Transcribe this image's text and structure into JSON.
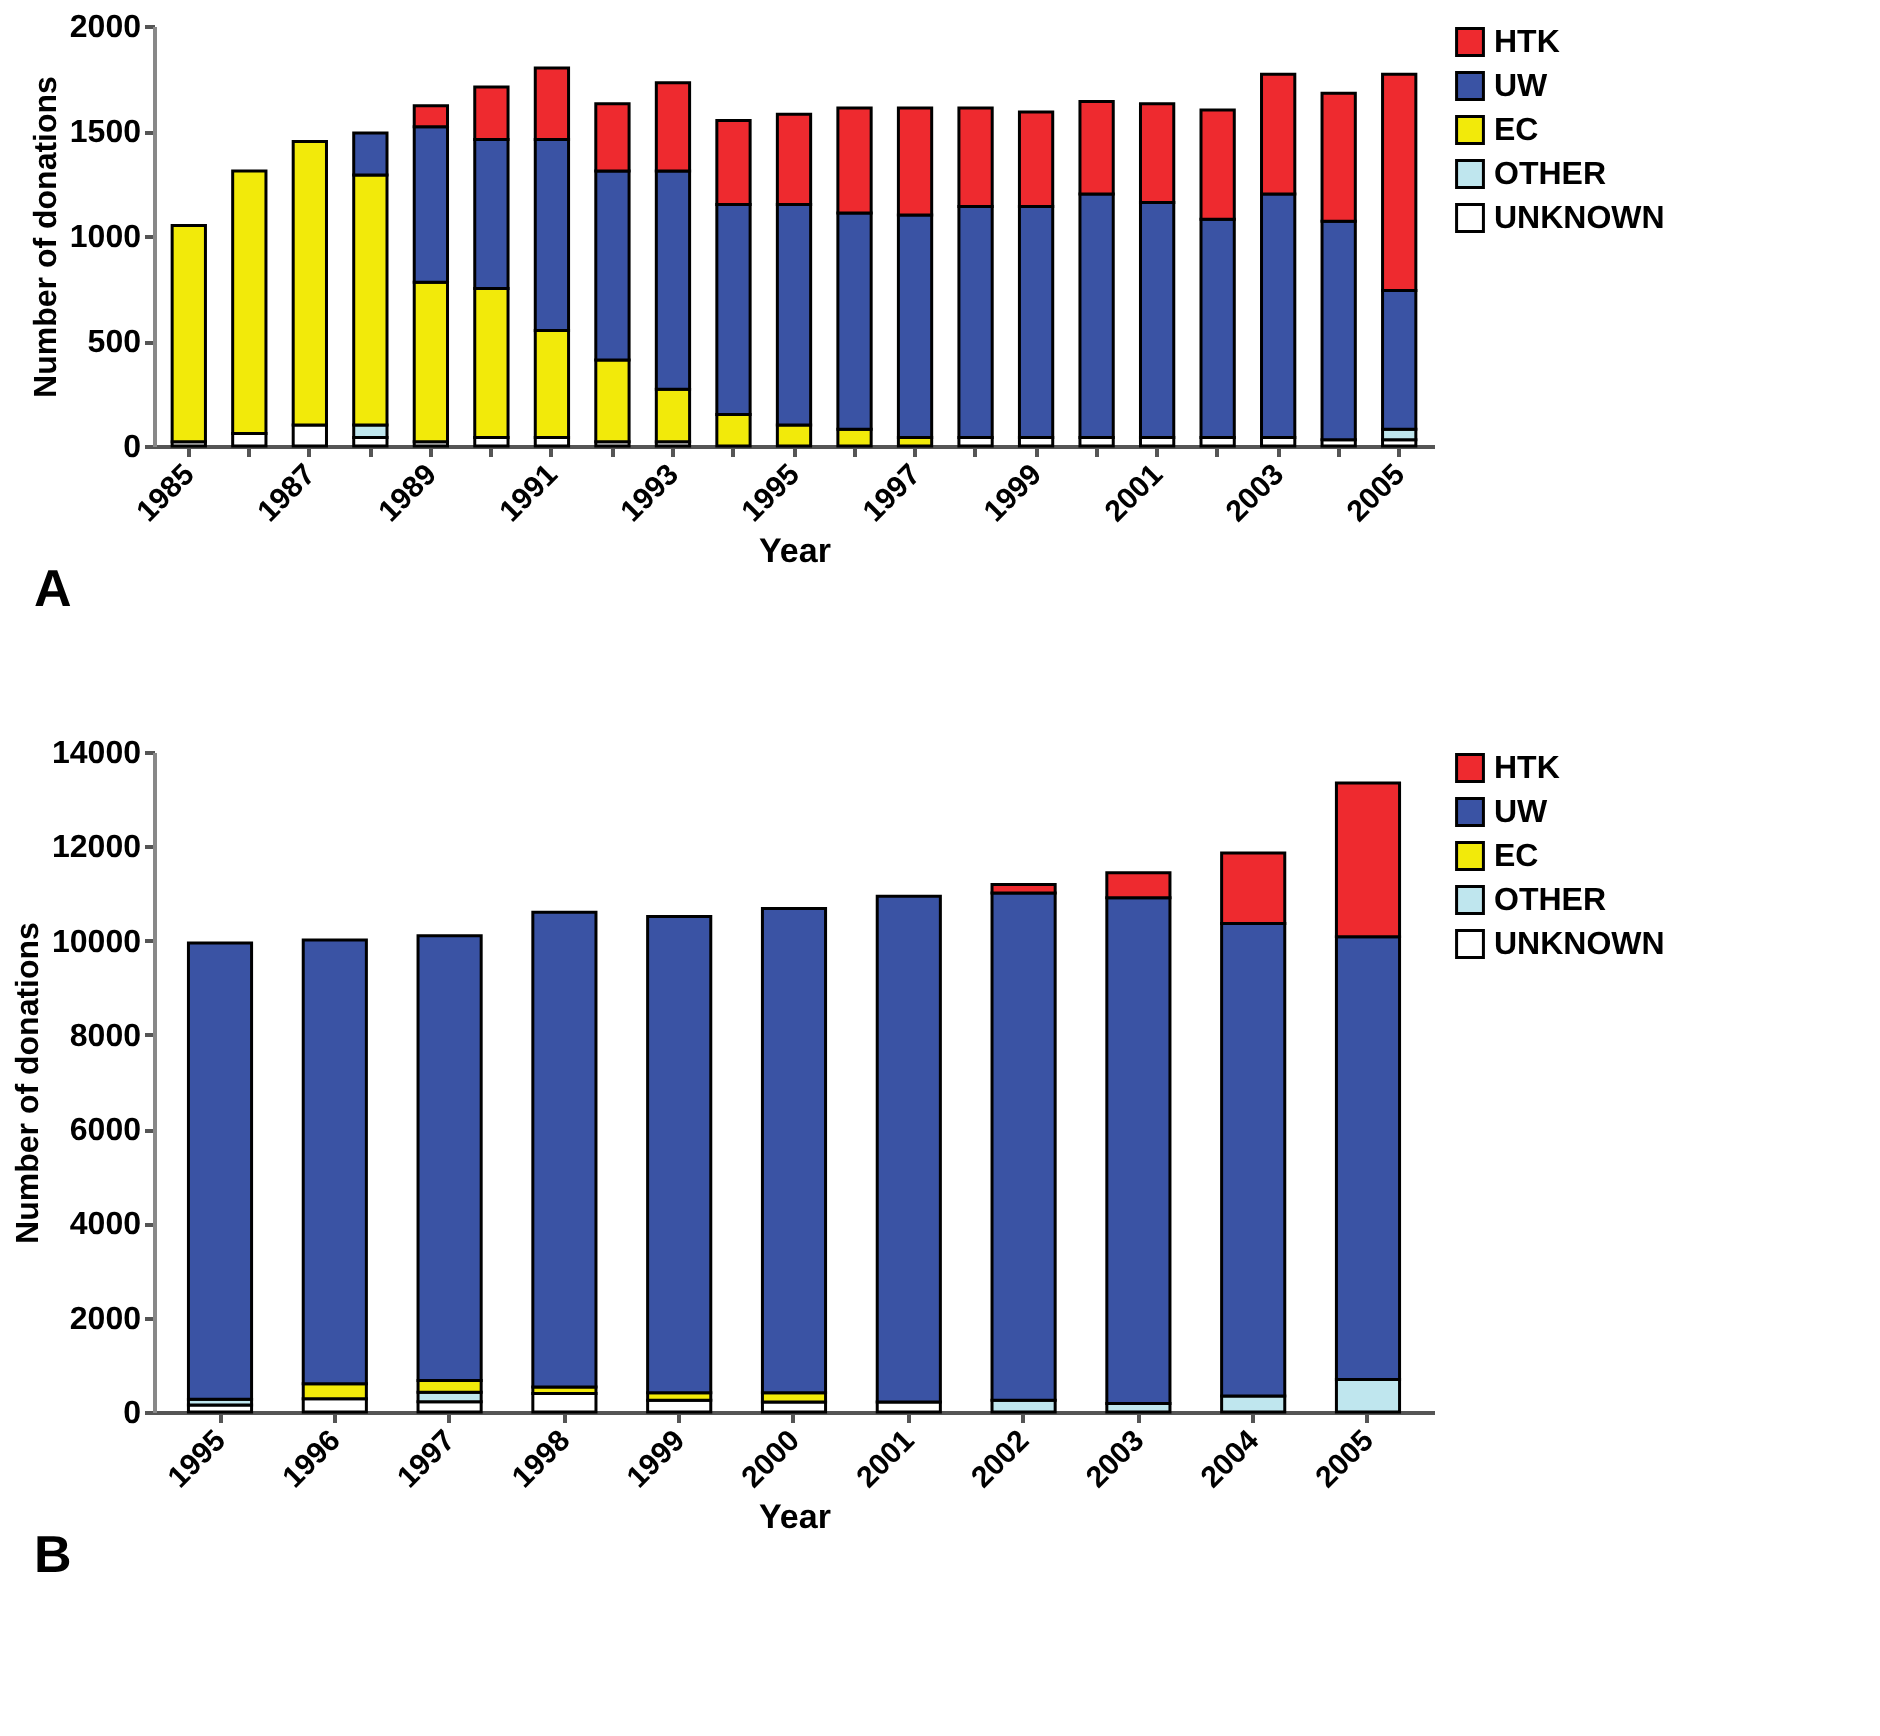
{
  "chart_data": [
    {
      "type": "bar",
      "stacked": true,
      "xlabel": "Year",
      "ylabel": "Number of  donations",
      "annotations": [
        "A"
      ],
      "legend": "right",
      "categories": [
        "1985",
        null,
        "1987",
        null,
        "1989",
        null,
        "1991",
        null,
        "1993",
        null,
        "1995",
        null,
        "1997",
        null,
        "1999",
        null,
        "2001",
        null,
        "2003",
        null,
        "2005"
      ],
      "ylim": [
        0,
        2000
      ],
      "yticks": [
        0,
        500,
        1000,
        1500,
        2000
      ],
      "series": [
        {
          "name": "UNKNOWN",
          "color": "#ffffff",
          "values": [
            20,
            60,
            100,
            40,
            20,
            40,
            40,
            20,
            20,
            null,
            null,
            null,
            null,
            40,
            40,
            40,
            40,
            40,
            40,
            30,
            30
          ]
        },
        {
          "name": "OTHER",
          "color": "#bfe6ee",
          "values": [
            null,
            null,
            null,
            60,
            null,
            null,
            null,
            null,
            null,
            null,
            null,
            null,
            null,
            null,
            null,
            null,
            null,
            null,
            null,
            null,
            50
          ]
        },
        {
          "name": "EC",
          "color": "#f2ea0a",
          "values": [
            1030,
            1250,
            1350,
            1190,
            760,
            710,
            510,
            390,
            250,
            150,
            100,
            80,
            40,
            null,
            null,
            null,
            null,
            null,
            null,
            null,
            null
          ]
        },
        {
          "name": "UW",
          "color": "#3a53a4",
          "values": [
            null,
            null,
            null,
            200,
            740,
            710,
            910,
            900,
            1040,
            1000,
            1050,
            1030,
            1060,
            1100,
            1100,
            1160,
            1120,
            1040,
            1160,
            1040,
            660
          ]
        },
        {
          "name": "HTK",
          "color": "#ee2a2f",
          "values": [
            null,
            null,
            null,
            null,
            100,
            250,
            340,
            320,
            420,
            400,
            430,
            500,
            510,
            470,
            450,
            440,
            470,
            520,
            570,
            610,
            1030
          ]
        }
      ]
    },
    {
      "type": "bar",
      "stacked": true,
      "xlabel": "Year",
      "ylabel": "Number of donations",
      "annotations": [
        "B"
      ],
      "legend": "right",
      "categories": [
        "1995",
        "1996",
        "1997",
        "1998",
        "1999",
        "2000",
        "2001",
        "2002",
        "2003",
        "2004",
        "2005"
      ],
      "ylim": [
        0,
        14000
      ],
      "yticks": [
        0,
        2000,
        4000,
        6000,
        8000,
        10000,
        12000,
        14000
      ],
      "series": [
        {
          "name": "UNKNOWN",
          "color": "#ffffff",
          "values": [
            150,
            280,
            220,
            390,
            250,
            210,
            210,
            null,
            null,
            null,
            null
          ]
        },
        {
          "name": "OTHER",
          "color": "#bfe6ee",
          "values": [
            120,
            null,
            200,
            null,
            null,
            null,
            null,
            250,
            180,
            340,
            690
          ]
        },
        {
          "name": "EC",
          "color": "#f2ea0a",
          "values": [
            null,
            320,
            250,
            140,
            160,
            200,
            null,
            null,
            null,
            null,
            null
          ]
        },
        {
          "name": "UW",
          "color": "#3a53a4",
          "values": [
            9680,
            9410,
            9430,
            10070,
            10100,
            10270,
            10730,
            10760,
            10730,
            10020,
            9390
          ]
        },
        {
          "name": "HTK",
          "color": "#ee2a2f",
          "values": [
            null,
            null,
            null,
            null,
            null,
            null,
            null,
            180,
            530,
            1500,
            3260
          ]
        }
      ]
    }
  ]
}
